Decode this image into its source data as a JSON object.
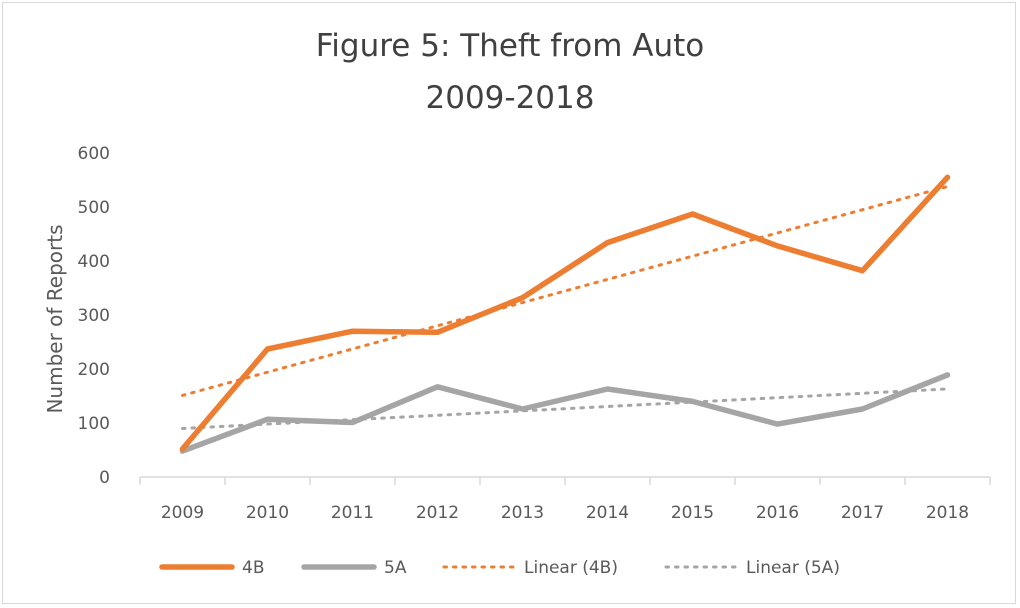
{
  "chart_data": {
    "type": "line",
    "title": "Figure 5: Theft from Auto",
    "subtitle": "2009-2018",
    "xlabel": "",
    "ylabel": "Number of Reports",
    "categories": [
      "2009",
      "2010",
      "2011",
      "2012",
      "2013",
      "2014",
      "2015",
      "2016",
      "2017",
      "2018"
    ],
    "ylim": [
      0,
      600
    ],
    "yticks": [
      0,
      100,
      200,
      300,
      400,
      500,
      600
    ],
    "grid": false,
    "legend_position": "bottom",
    "series": [
      {
        "name": "4B",
        "values": [
          52,
          237,
          270,
          268,
          332,
          434,
          487,
          428,
          382,
          555
        ],
        "color": "#ed7d31",
        "style": "solid"
      },
      {
        "name": "5A",
        "values": [
          48,
          107,
          101,
          167,
          126,
          163,
          140,
          98,
          126,
          189
        ],
        "color": "#a5a5a5",
        "style": "solid"
      }
    ],
    "trendlines": [
      {
        "name": "Linear (4B)",
        "of": "4B",
        "type": "linear",
        "color": "#ed7d31",
        "style": "dotted"
      },
      {
        "name": "Linear (5A)",
        "of": "5A",
        "type": "linear",
        "color": "#a5a5a5",
        "style": "dotted"
      }
    ]
  }
}
